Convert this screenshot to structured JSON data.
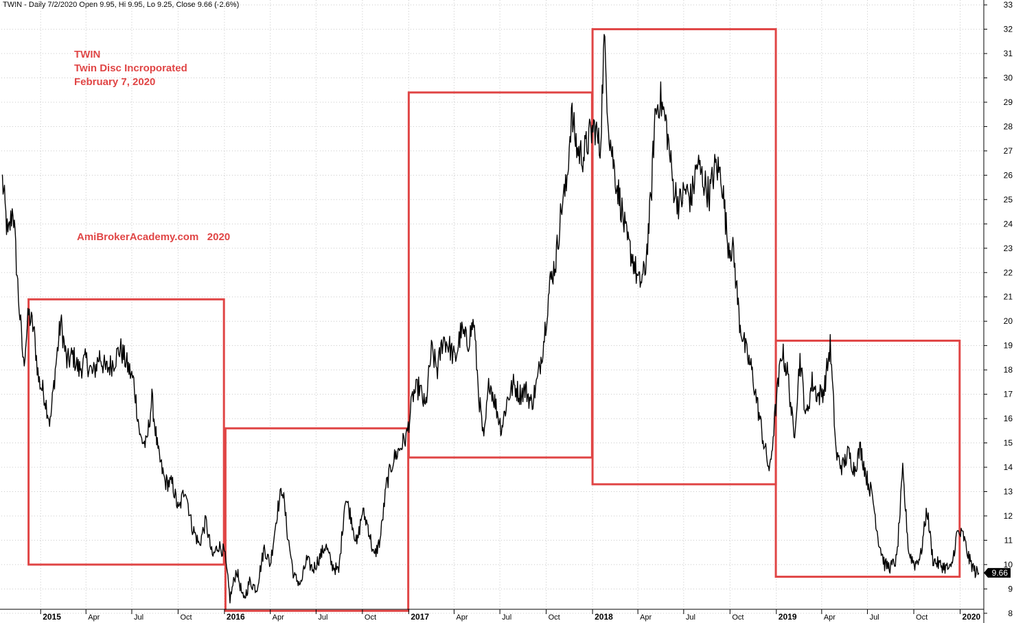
{
  "header": {
    "quote_line": "TWIN - Daily 7/2/2020 Open 9.95, Hi 9.95, Lo 9.25, Close 9.66 (-2.6%)"
  },
  "annotation": {
    "symbol": "TWIN",
    "company": "Twin Disc Incroporated",
    "date": "February 7, 2020"
  },
  "watermark": "AmiBrokerAcademy.com   2020",
  "colors": {
    "price_line": "#000000",
    "box_outline": "#e04545",
    "annotation_text": "#e04545",
    "grid": "#c8c8c8",
    "last_price_tag": "#000000"
  },
  "chart_data": {
    "type": "line",
    "title": "",
    "xlabel": "",
    "ylabel": "",
    "ylim": [
      7.6,
      33.2
    ],
    "xlim": [
      "2014-10-15",
      "2020-02-17"
    ],
    "grid": true,
    "y_axis_position": "right",
    "y_ticks": [
      8,
      9,
      10,
      11,
      12,
      13,
      14,
      15,
      16,
      17,
      18,
      19,
      20,
      21,
      22,
      23,
      24,
      25,
      26,
      27,
      28,
      29,
      30,
      31,
      32,
      33
    ],
    "year_ticks": [
      {
        "label": "2015",
        "date": "2015-01-01"
      },
      {
        "label": "2016",
        "date": "2016-01-01"
      },
      {
        "label": "2017",
        "date": "2017-01-01"
      },
      {
        "label": "2018",
        "date": "2018-01-01"
      },
      {
        "label": "2019",
        "date": "2019-01-01"
      },
      {
        "label": "2020",
        "date": "2020-01-01"
      }
    ],
    "month_ticks": [
      {
        "label": "Apr",
        "date": "2015-04-01"
      },
      {
        "label": "Jul",
        "date": "2015-07-01"
      },
      {
        "label": "Oct",
        "date": "2015-10-01"
      },
      {
        "label": "Apr",
        "date": "2016-04-01"
      },
      {
        "label": "Jul",
        "date": "2016-07-01"
      },
      {
        "label": "Oct",
        "date": "2016-10-01"
      },
      {
        "label": "Apr",
        "date": "2017-04-01"
      },
      {
        "label": "Jul",
        "date": "2017-07-01"
      },
      {
        "label": "Oct",
        "date": "2017-10-01"
      },
      {
        "label": "Apr",
        "date": "2018-04-01"
      },
      {
        "label": "Jul",
        "date": "2018-07-01"
      },
      {
        "label": "Oct",
        "date": "2018-10-01"
      },
      {
        "label": "Apr",
        "date": "2019-04-01"
      },
      {
        "label": "Jul",
        "date": "2019-07-01"
      },
      {
        "label": "Oct",
        "date": "2019-10-01"
      }
    ],
    "last_price": {
      "label": "9.66",
      "value": 9.66
    },
    "series": [
      {
        "points": [
          [
            "2014-10-17",
            25.8
          ],
          [
            "2014-10-28",
            23.4
          ],
          [
            "2014-11-07",
            24.7
          ],
          [
            "2014-11-18",
            21.0
          ],
          [
            "2014-11-28",
            18.2
          ],
          [
            "2014-12-08",
            20.3
          ],
          [
            "2014-12-18",
            19.7
          ],
          [
            "2014-12-28",
            17.6
          ],
          [
            "2015-01-08",
            17.0
          ],
          [
            "2015-01-20",
            15.8
          ],
          [
            "2015-01-30",
            18.0
          ],
          [
            "2015-02-10",
            20.0
          ],
          [
            "2015-02-22",
            18.3
          ],
          [
            "2015-03-06",
            18.6
          ],
          [
            "2015-03-18",
            18.0
          ],
          [
            "2015-04-01",
            18.4
          ],
          [
            "2015-04-15",
            17.8
          ],
          [
            "2015-04-28",
            18.6
          ],
          [
            "2015-05-10",
            18.0
          ],
          [
            "2015-05-25",
            18.3
          ],
          [
            "2015-06-08",
            18.9
          ],
          [
            "2015-06-20",
            18.3
          ],
          [
            "2015-07-05",
            17.5
          ],
          [
            "2015-07-18",
            15.2
          ],
          [
            "2015-07-30",
            14.9
          ],
          [
            "2015-08-10",
            16.8
          ],
          [
            "2015-08-22",
            14.6
          ],
          [
            "2015-09-05",
            13.4
          ],
          [
            "2015-09-20",
            13.3
          ],
          [
            "2015-10-02",
            12.2
          ],
          [
            "2015-10-15",
            13.2
          ],
          [
            "2015-10-28",
            11.6
          ],
          [
            "2015-11-12",
            10.8
          ],
          [
            "2015-11-25",
            11.8
          ],
          [
            "2015-12-08",
            10.3
          ],
          [
            "2015-12-20",
            10.8
          ],
          [
            "2016-01-01",
            10.5
          ],
          [
            "2016-01-12",
            8.6
          ],
          [
            "2016-01-25",
            9.8
          ],
          [
            "2016-02-08",
            8.5
          ],
          [
            "2016-02-20",
            9.3
          ],
          [
            "2016-03-05",
            9.0
          ],
          [
            "2016-03-20",
            10.7
          ],
          [
            "2016-04-01",
            10.0
          ],
          [
            "2016-04-15",
            12.2
          ],
          [
            "2016-04-25",
            13.2
          ],
          [
            "2016-05-05",
            11.3
          ],
          [
            "2016-05-18",
            9.5
          ],
          [
            "2016-06-01",
            9.2
          ],
          [
            "2016-06-12",
            10.2
          ],
          [
            "2016-06-25",
            9.8
          ],
          [
            "2016-07-08",
            10.3
          ],
          [
            "2016-07-20",
            10.8
          ],
          [
            "2016-08-01",
            10.0
          ],
          [
            "2016-08-15",
            9.7
          ],
          [
            "2016-08-28",
            12.8
          ],
          [
            "2016-09-08",
            12.0
          ],
          [
            "2016-09-20",
            10.8
          ],
          [
            "2016-10-01",
            12.2
          ],
          [
            "2016-10-12",
            11.6
          ],
          [
            "2016-10-24",
            10.3
          ],
          [
            "2016-11-05",
            11.0
          ],
          [
            "2016-11-18",
            13.3
          ],
          [
            "2016-12-01",
            14.3
          ],
          [
            "2016-12-15",
            14.8
          ],
          [
            "2016-12-28",
            15.3
          ],
          [
            "2017-01-10",
            17.0
          ],
          [
            "2017-01-22",
            17.3
          ],
          [
            "2017-02-03",
            16.4
          ],
          [
            "2017-02-15",
            18.8
          ],
          [
            "2017-02-27",
            18.0
          ],
          [
            "2017-03-10",
            19.3
          ],
          [
            "2017-03-22",
            19.0
          ],
          [
            "2017-04-03",
            18.4
          ],
          [
            "2017-04-15",
            19.6
          ],
          [
            "2017-04-28",
            19.1
          ],
          [
            "2017-05-10",
            20.0
          ],
          [
            "2017-05-20",
            17.0
          ],
          [
            "2017-05-30",
            15.0
          ],
          [
            "2017-06-10",
            17.6
          ],
          [
            "2017-06-22",
            16.6
          ],
          [
            "2017-07-04",
            15.6
          ],
          [
            "2017-07-16",
            16.8
          ],
          [
            "2017-07-28",
            17.4
          ],
          [
            "2017-08-09",
            17.0
          ],
          [
            "2017-08-21",
            17.2
          ],
          [
            "2017-09-02",
            16.6
          ],
          [
            "2017-09-14",
            17.6
          ],
          [
            "2017-09-26",
            19.2
          ],
          [
            "2017-10-08",
            21.5
          ],
          [
            "2017-10-20",
            22.5
          ],
          [
            "2017-11-01",
            24.8
          ],
          [
            "2017-11-10",
            25.5
          ],
          [
            "2017-11-20",
            28.5
          ],
          [
            "2017-12-02",
            27.0
          ],
          [
            "2017-12-14",
            26.8
          ],
          [
            "2017-12-26",
            27.6
          ],
          [
            "2018-01-06",
            28.0
          ],
          [
            "2018-01-16",
            27.0
          ],
          [
            "2018-01-24",
            31.5
          ],
          [
            "2018-02-03",
            27.8
          ],
          [
            "2018-02-15",
            26.0
          ],
          [
            "2018-02-27",
            24.7
          ],
          [
            "2018-03-10",
            23.3
          ],
          [
            "2018-03-22",
            22.6
          ],
          [
            "2018-04-03",
            21.5
          ],
          [
            "2018-04-15",
            22.0
          ],
          [
            "2018-04-27",
            25.0
          ],
          [
            "2018-05-05",
            28.5
          ],
          [
            "2018-05-15",
            29.2
          ],
          [
            "2018-05-28",
            28.0
          ],
          [
            "2018-06-10",
            25.6
          ],
          [
            "2018-06-22",
            24.8
          ],
          [
            "2018-07-04",
            25.4
          ],
          [
            "2018-07-16",
            25.0
          ],
          [
            "2018-07-28",
            26.5
          ],
          [
            "2018-08-09",
            25.8
          ],
          [
            "2018-08-21",
            25.2
          ],
          [
            "2018-09-02",
            26.4
          ],
          [
            "2018-09-14",
            26.0
          ],
          [
            "2018-09-26",
            23.3
          ],
          [
            "2018-10-08",
            22.8
          ],
          [
            "2018-10-20",
            20.0
          ],
          [
            "2018-11-01",
            18.8
          ],
          [
            "2018-11-13",
            18.0
          ],
          [
            "2018-11-25",
            16.5
          ],
          [
            "2018-12-07",
            15.0
          ],
          [
            "2018-12-19",
            13.8
          ],
          [
            "2018-12-31",
            16.5
          ],
          [
            "2019-01-12",
            18.8
          ],
          [
            "2019-01-24",
            17.8
          ],
          [
            "2019-02-05",
            15.2
          ],
          [
            "2019-02-17",
            18.5
          ],
          [
            "2019-03-01",
            16.0
          ],
          [
            "2019-03-13",
            17.5
          ],
          [
            "2019-03-25",
            16.9
          ],
          [
            "2019-04-06",
            17.2
          ],
          [
            "2019-04-18",
            19.0
          ],
          [
            "2019-04-30",
            14.5
          ],
          [
            "2019-05-12",
            14.0
          ],
          [
            "2019-05-24",
            14.6
          ],
          [
            "2019-06-05",
            13.9
          ],
          [
            "2019-06-17",
            14.8
          ],
          [
            "2019-06-29",
            13.6
          ],
          [
            "2019-07-11",
            12.8
          ],
          [
            "2019-07-23",
            11.0
          ],
          [
            "2019-08-04",
            10.0
          ],
          [
            "2019-08-16",
            9.9
          ],
          [
            "2019-08-28",
            10.2
          ],
          [
            "2019-09-09",
            13.8
          ],
          [
            "2019-09-21",
            10.5
          ],
          [
            "2019-10-03",
            10.0
          ],
          [
            "2019-10-15",
            10.4
          ],
          [
            "2019-10-27",
            12.3
          ],
          [
            "2019-11-08",
            10.2
          ],
          [
            "2019-11-20",
            10.0
          ],
          [
            "2019-12-02",
            9.9
          ],
          [
            "2019-12-14",
            9.8
          ],
          [
            "2019-12-26",
            11.3
          ],
          [
            "2020-01-07",
            11.2
          ],
          [
            "2020-01-19",
            10.2
          ],
          [
            "2020-01-31",
            9.7
          ],
          [
            "2020-02-07",
            9.66
          ]
        ]
      }
    ],
    "annotation_boxes": [
      {
        "start": "2014-12-08",
        "end": "2015-12-31",
        "low": 10.0,
        "high": 20.9
      },
      {
        "start": "2016-01-03",
        "end": "2016-12-31",
        "low": 8.1,
        "high": 15.6
      },
      {
        "start": "2017-01-01",
        "end": "2017-12-31",
        "low": 14.4,
        "high": 29.4
      },
      {
        "start": "2018-01-01",
        "end": "2018-12-31",
        "low": 13.3,
        "high": 32.0
      },
      {
        "start": "2018-12-31",
        "end": "2019-12-31",
        "low": 9.5,
        "high": 19.2
      }
    ]
  }
}
